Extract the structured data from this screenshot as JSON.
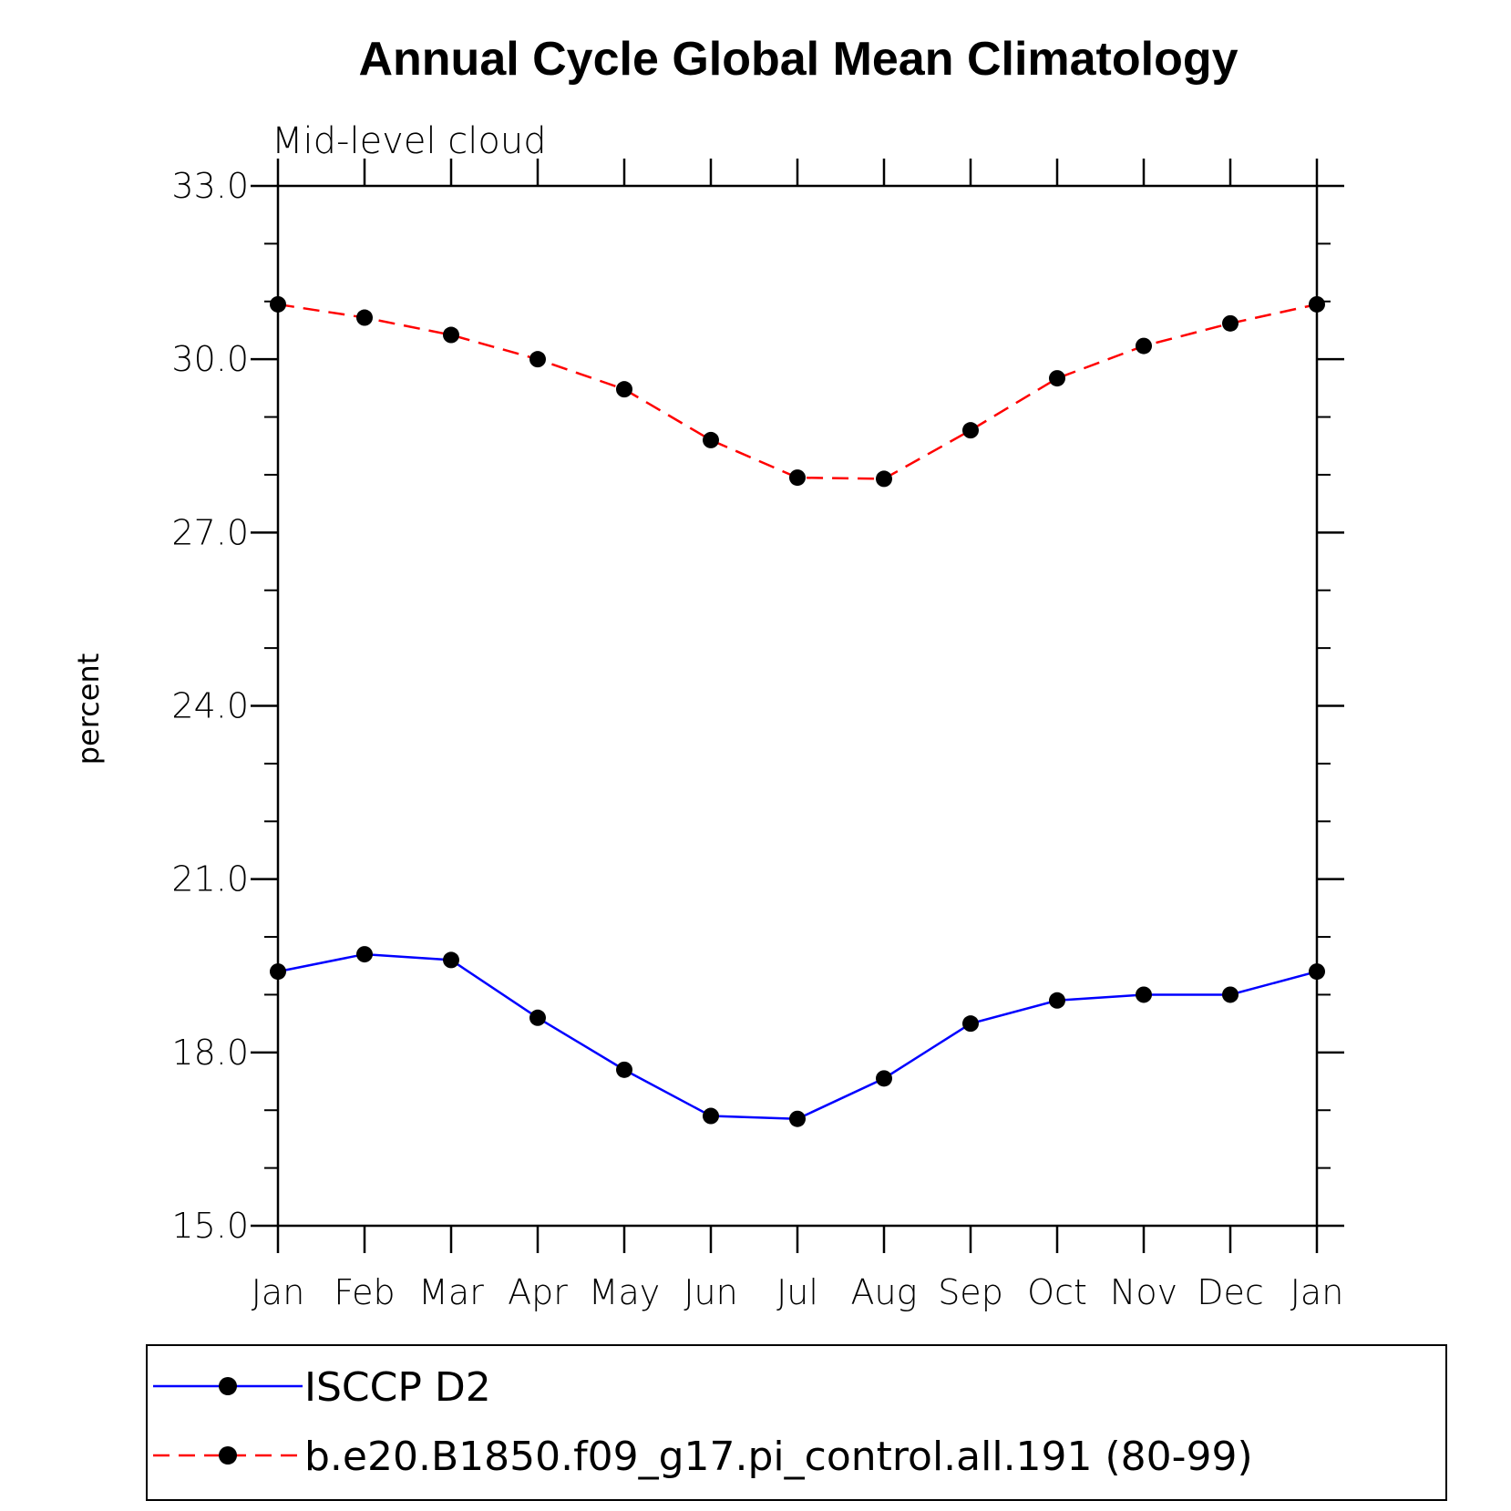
{
  "chart_data": {
    "type": "line",
    "title": "Annual Cycle Global Mean Climatology",
    "subtitle": "Mid-level cloud",
    "xlabel": "",
    "ylabel": "percent",
    "categories": [
      "Jan",
      "Feb",
      "Mar",
      "Apr",
      "May",
      "Jun",
      "Jul",
      "Aug",
      "Sep",
      "Oct",
      "Nov",
      "Dec",
      "Jan"
    ],
    "ylim": [
      15.0,
      33.0
    ],
    "yticks": [
      "15.0",
      "18.0",
      "21.0",
      "24.0",
      "27.0",
      "30.0",
      "33.0"
    ],
    "ytick_values": [
      15,
      18,
      21,
      24,
      27,
      30,
      33
    ],
    "grid": false,
    "legend_position": "bottom",
    "series": [
      {
        "name": "ISCCP D2",
        "color": "#0000ff",
        "style": "solid",
        "values": [
          19.4,
          19.7,
          19.6,
          18.6,
          17.7,
          16.9,
          16.85,
          17.55,
          18.5,
          18.9,
          19.0,
          19.0,
          19.4
        ]
      },
      {
        "name": "b.e20.B1850.f09_g17.pi_control.all.191 (80-99)",
        "color": "#ff0000",
        "style": "dashed",
        "values": [
          30.95,
          30.72,
          30.42,
          30.0,
          29.48,
          28.6,
          27.95,
          27.93,
          28.77,
          29.67,
          30.23,
          30.62,
          30.95
        ]
      }
    ]
  }
}
